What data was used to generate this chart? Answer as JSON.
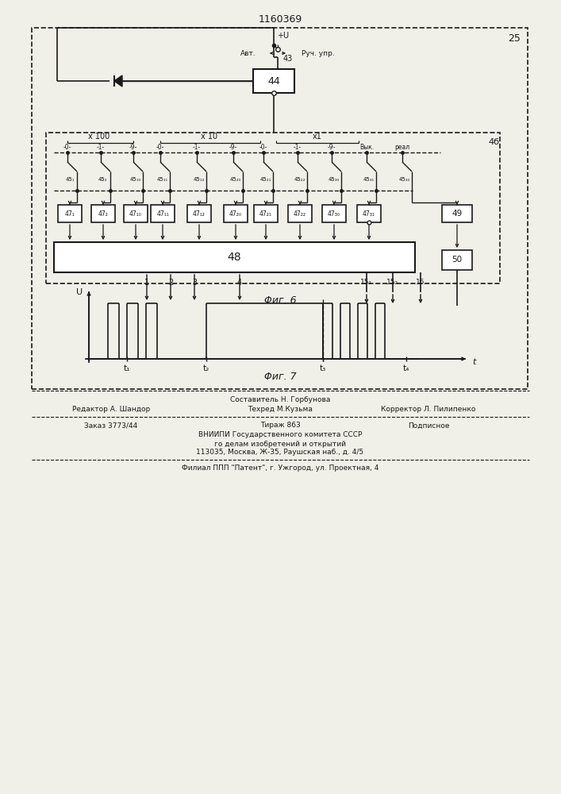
{
  "title": "1160369",
  "fig_6_label": "Φиг. 6",
  "fig_7_label": "Φиг. 7",
  "label_25": "25",
  "label_46": "4б",
  "label_44": "44",
  "label_48": "48",
  "label_49": "49",
  "label_50": "50",
  "label_43": "43",
  "plus_u": "+U",
  "avt": "Авт.",
  "ruch_upr": "Руч. упр.",
  "x100": "x 100",
  "x10": "x 10",
  "x1": "x1",
  "vyk": "Вык.",
  "real": "реал",
  "bg_color": "#f0efe8",
  "line_color": "#1a1a1a",
  "box_color": "#ffffff",
  "footer_line1": "Составитель Н. Горбунова",
  "footer_line2a": "Редактор А. Шандор",
  "footer_line2b": "Техред М.Кузьма",
  "footer_line2c": "Корректор Л. Пилипенко",
  "footer_line3a": "Заказ 3773/44",
  "footer_line3b": "Тираж 863",
  "footer_line3c": "Подписное",
  "footer_line4": "ВНИИПИ Государственного комитета СССР",
  "footer_line5": "го делам изобретений и открытий",
  "footer_line6": "113035, Москва, Ж-35, Раушская наб., д. 4/5",
  "footer_line7": "Филиал ППП \"Патент\", г. Ужгород, ул. Проектная, 4"
}
